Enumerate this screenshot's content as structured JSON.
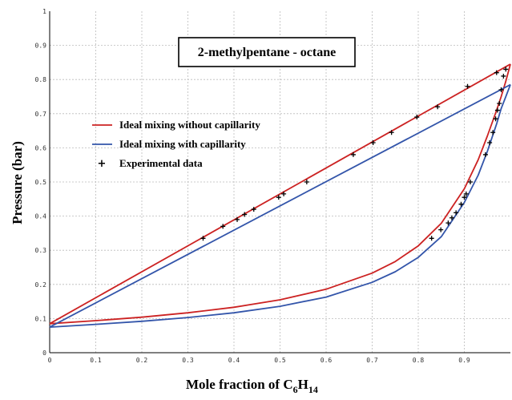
{
  "chart_data": {
    "type": "line",
    "title": "2-methylpentane  -  octane",
    "xlabel_prefix": "Mole fraction of  C",
    "xlabel_sub1": "6",
    "xlabel_mid": "H",
    "xlabel_sub2": "14",
    "ylabel": "Pressure (bar)",
    "xlim": [
      0,
      1
    ],
    "ylim": [
      0,
      1
    ],
    "xticks": [
      "0",
      "0.1",
      "0.2",
      "0.3",
      "0.4",
      "0.5",
      "0.6",
      "0.7",
      "0.8",
      "0.9"
    ],
    "yticks": [
      "0",
      "0.1",
      "0.2",
      "0.3",
      "0.4",
      "0.5",
      "0.6",
      "0.7",
      "0.8",
      "0.9",
      "1"
    ],
    "grid": true,
    "legend_position": "left",
    "legend": [
      {
        "label": "Ideal mixing without capillarity",
        "color": "#cc2222",
        "marker": "line"
      },
      {
        "label": "Ideal mixing with capillarity",
        "color": "#3355aa",
        "marker": "line"
      },
      {
        "label": "Experimental data",
        "color": "#000000",
        "marker": "+"
      }
    ],
    "series": [
      {
        "name": "Ideal mixing without capillarity",
        "color": "#cc2222",
        "kind": "bubble",
        "x": [
          0,
          1
        ],
        "y": [
          0.085,
          0.845
        ]
      },
      {
        "name": "Ideal mixing without capillarity",
        "color": "#cc2222",
        "kind": "dew",
        "x": [
          0,
          0.1,
          0.2,
          0.3,
          0.4,
          0.5,
          0.6,
          0.7,
          0.75,
          0.8,
          0.85,
          0.9,
          0.93,
          0.95,
          0.97,
          0.98,
          0.99,
          1.0
        ],
        "y": [
          0.085,
          0.094,
          0.104,
          0.117,
          0.133,
          0.155,
          0.186,
          0.233,
          0.267,
          0.313,
          0.379,
          0.48,
          0.565,
          0.635,
          0.71,
          0.75,
          0.795,
          0.845
        ]
      },
      {
        "name": "Ideal mixing with capillarity",
        "color": "#3355aa",
        "kind": "bubble",
        "x": [
          0,
          1
        ],
        "y": [
          0.075,
          0.785
        ]
      },
      {
        "name": "Ideal mixing with capillarity",
        "color": "#3355aa",
        "kind": "dew",
        "x": [
          0,
          0.1,
          0.2,
          0.3,
          0.4,
          0.5,
          0.6,
          0.7,
          0.75,
          0.8,
          0.85,
          0.9,
          0.93,
          0.95,
          0.97,
          0.98,
          0.99,
          1.0
        ],
        "y": [
          0.075,
          0.083,
          0.092,
          0.103,
          0.117,
          0.136,
          0.163,
          0.206,
          0.237,
          0.279,
          0.34,
          0.44,
          0.52,
          0.59,
          0.67,
          0.715,
          0.75,
          0.785
        ]
      },
      {
        "name": "Experimental data",
        "color": "#000000",
        "kind": "points",
        "x": [
          0.333,
          0.376,
          0.407,
          0.423,
          0.443,
          0.497,
          0.508,
          0.558,
          0.659,
          0.702,
          0.742,
          0.797,
          0.842,
          0.907,
          0.97,
          0.99,
          0.829,
          0.849,
          0.865,
          0.873,
          0.882,
          0.893,
          0.9,
          0.904,
          0.913,
          0.946,
          0.955,
          0.962,
          0.968,
          0.972,
          0.976,
          0.98,
          0.985
        ],
        "y": [
          0.335,
          0.37,
          0.39,
          0.405,
          0.42,
          0.455,
          0.465,
          0.5,
          0.58,
          0.615,
          0.645,
          0.69,
          0.72,
          0.78,
          0.82,
          0.83,
          0.335,
          0.36,
          0.38,
          0.395,
          0.41,
          0.435,
          0.455,
          0.465,
          0.5,
          0.58,
          0.615,
          0.645,
          0.685,
          0.71,
          0.73,
          0.77,
          0.81
        ]
      }
    ]
  }
}
